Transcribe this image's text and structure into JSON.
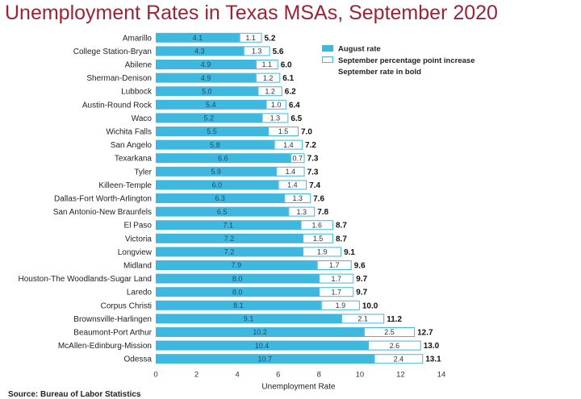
{
  "title": "Unemployment Rates in Texas MSAs, September 2020",
  "source": "Source: Bureau of Labor Statistics",
  "colors": {
    "august": "#3fb8e0",
    "increase_fill": "#ffffff",
    "increase_stroke": "#3fb8e0",
    "title": "#9b2335"
  },
  "chart_data": {
    "type": "bar",
    "orientation": "horizontal",
    "stacked": true,
    "categories": [
      "Amarillo",
      "College Station-Bryan",
      "Abilene",
      "Sherman-Denison",
      "Lubbock",
      "Austin-Round Rock",
      "Waco",
      "Wichita Falls",
      "San Angelo",
      "Texarkana",
      "Tyler",
      "Killeen-Temple",
      "Dallas-Fort Worth-Arlington",
      "San Antonio-New Braunfels",
      "El Paso",
      "Victoria",
      "Longview",
      "Midland",
      "Houston-The Woodlands-Sugar Land",
      "Laredo",
      "Corpus Christi",
      "Brownsville-Harlingen",
      "Beaumont-Port Arthur",
      "McAllen-Edinburg-Mission",
      "Odessa"
    ],
    "series": [
      {
        "name": "August rate",
        "values": [
          4.1,
          4.3,
          4.9,
          4.9,
          5.0,
          5.4,
          5.2,
          5.5,
          5.8,
          6.6,
          5.9,
          6.0,
          6.3,
          6.5,
          7.1,
          7.2,
          7.2,
          7.9,
          8.0,
          8.0,
          8.1,
          9.1,
          10.2,
          10.4,
          10.7
        ]
      },
      {
        "name": "September percentage point increase",
        "values": [
          1.1,
          1.3,
          1.1,
          1.2,
          1.2,
          1.0,
          1.3,
          1.5,
          1.4,
          0.7,
          1.4,
          1.4,
          1.3,
          1.3,
          1.6,
          1.5,
          1.9,
          1.7,
          1.7,
          1.7,
          1.9,
          2.1,
          2.5,
          2.6,
          2.4
        ]
      }
    ],
    "totals": [
      "5.2",
      "5.6",
      "6.0",
      "6.1",
      "6.2",
      "6.4",
      "6.5",
      "7.0",
      "7.2",
      "7.3",
      "7.3",
      "7.4",
      "7.6",
      "7.8",
      "8.7",
      "8.7",
      "9.1",
      "9.6",
      "9.7",
      "9.7",
      "10.0",
      "11.2",
      "12.7",
      "13.0",
      "13.1"
    ],
    "legend": [
      "August rate",
      "September percentage point increase"
    ],
    "legend_note": [
      "September rate in ",
      "bold"
    ],
    "legend_position": "top-right",
    "xlabel": "Unemployment Rate",
    "xlim": [
      0,
      14
    ],
    "xticks": [
      0,
      2,
      4,
      6,
      8,
      10,
      12,
      14
    ],
    "grid": false
  }
}
